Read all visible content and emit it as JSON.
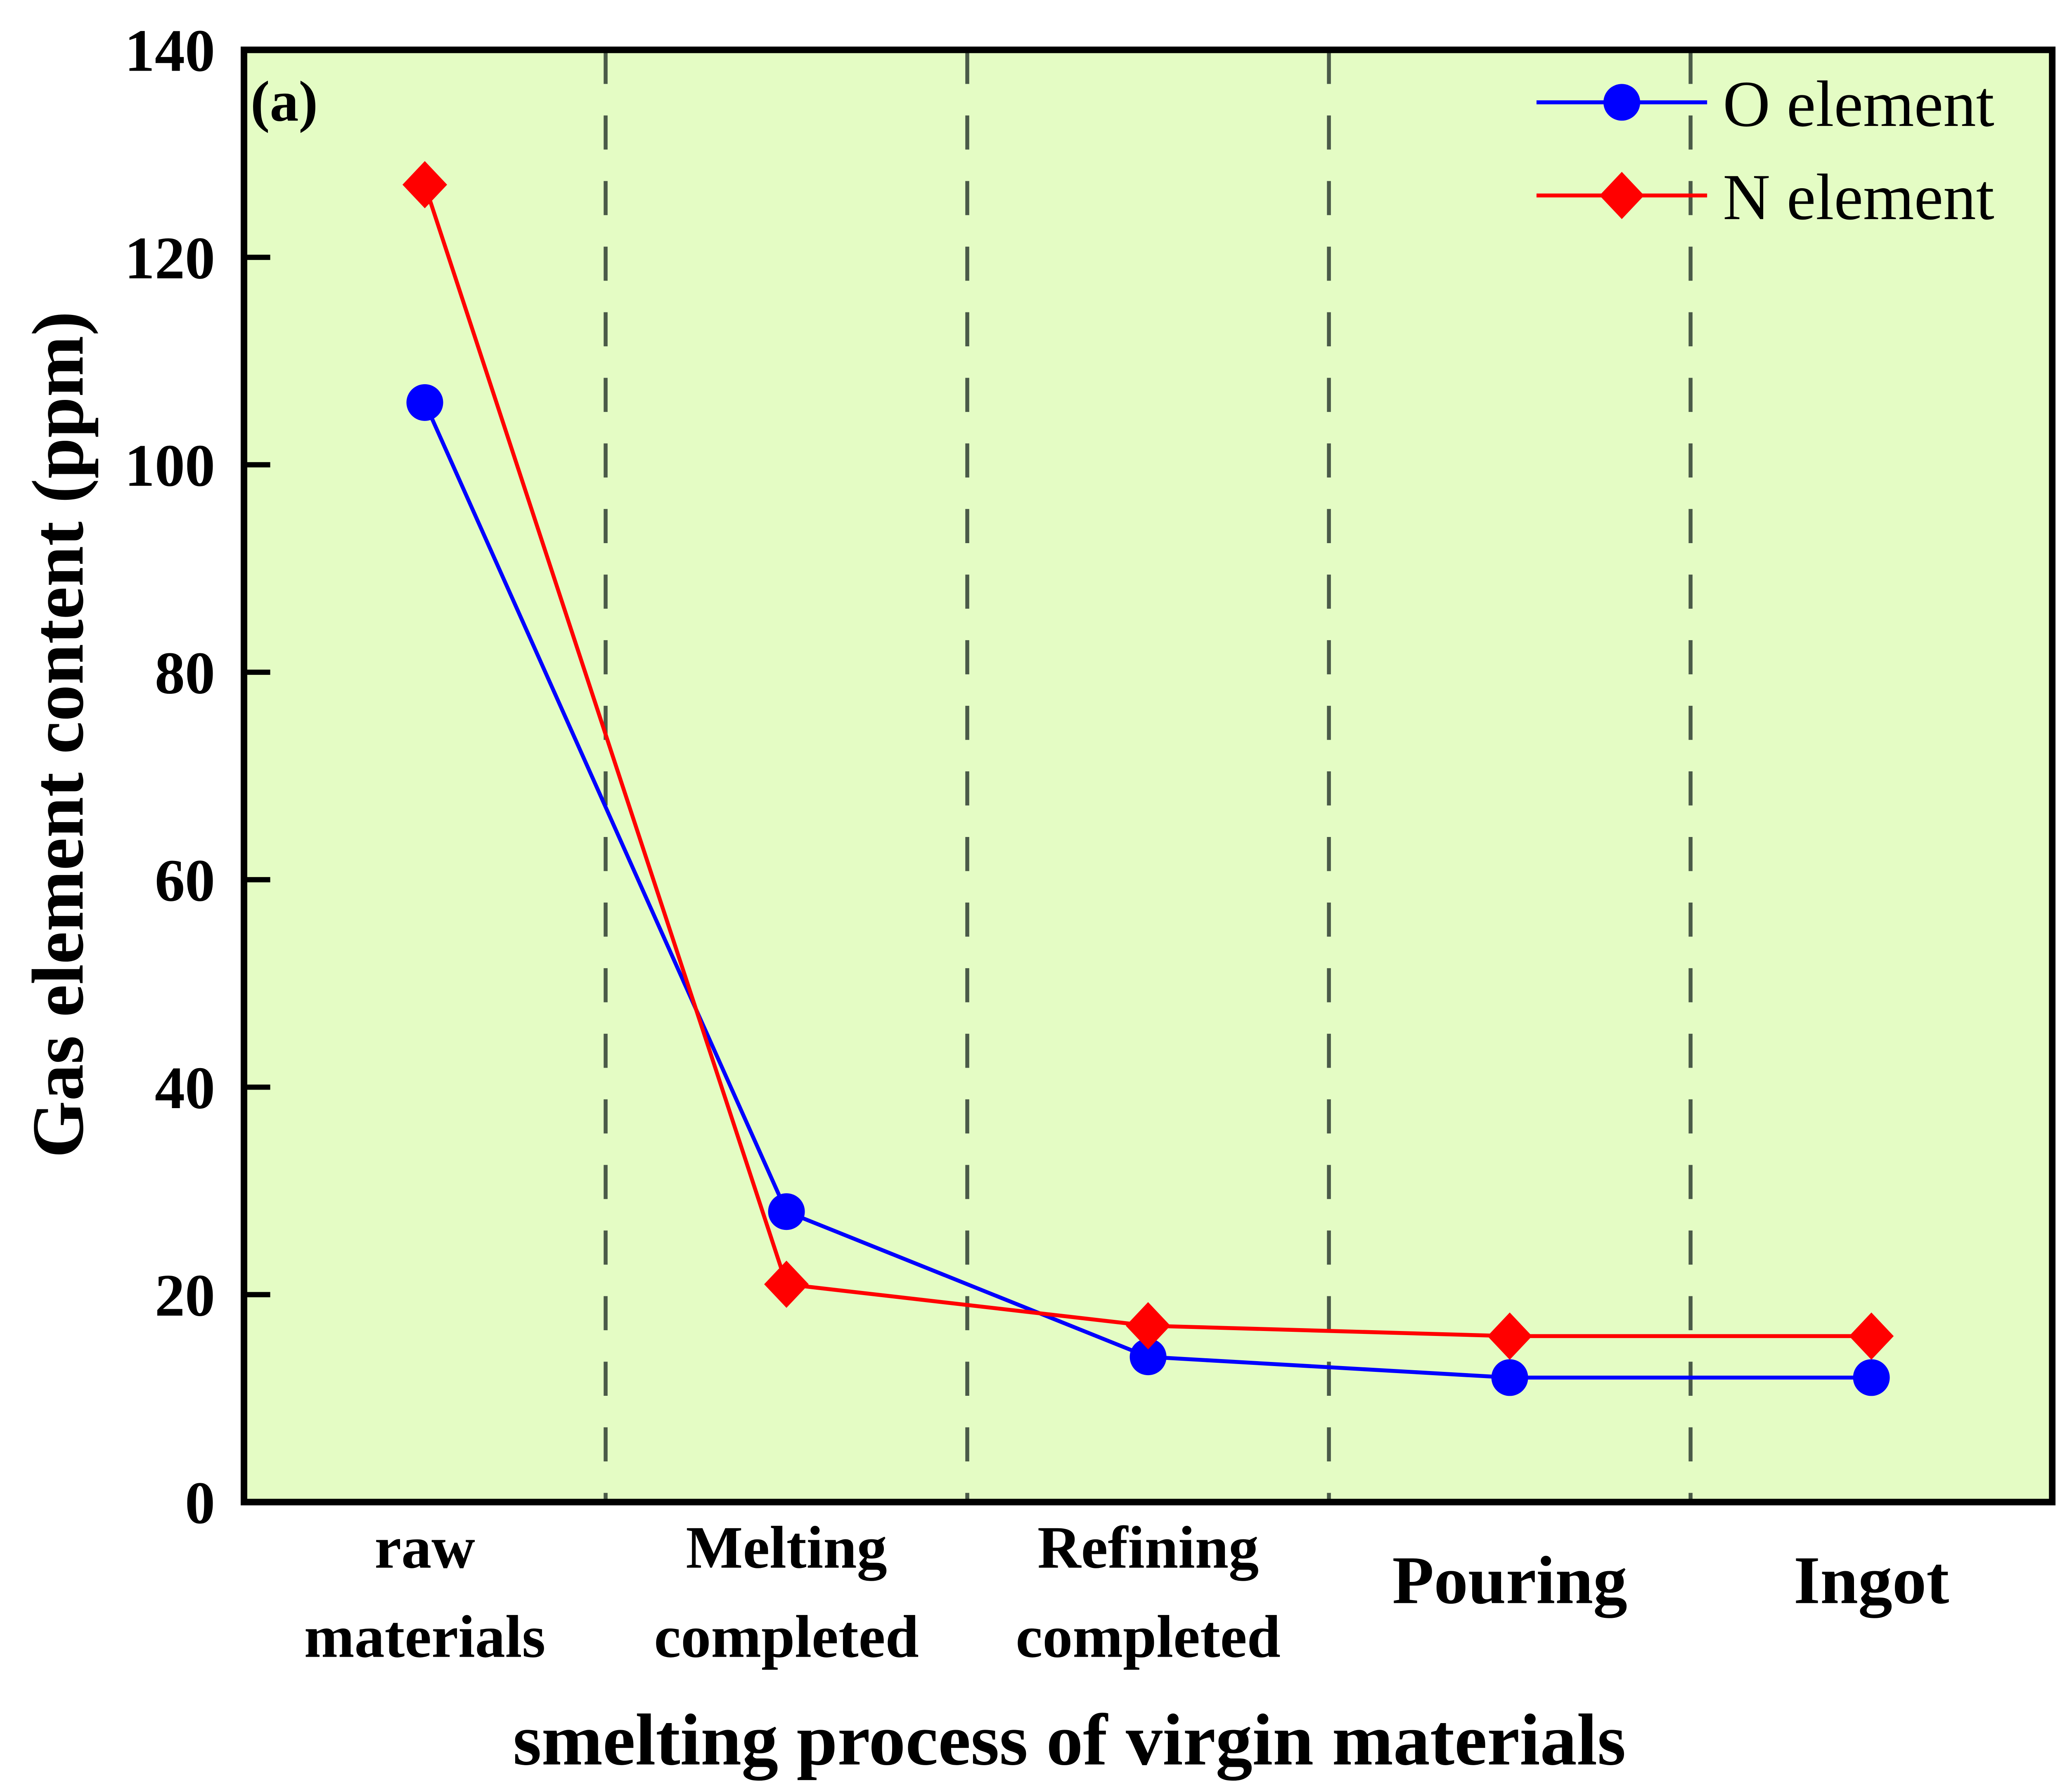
{
  "chart_data": {
    "type": "line",
    "panel_label": "(a)",
    "xlabel": "smelting process of virgin materials",
    "ylabel": "Gas element content (ppm)",
    "categories": [
      [
        "raw",
        "materials"
      ],
      [
        "Melting",
        "completed"
      ],
      [
        "Refining",
        "completed"
      ],
      [
        "Pouring"
      ],
      [
        "Ingot"
      ]
    ],
    "ylim": [
      0,
      140
    ],
    "yticks": [
      0,
      20,
      40,
      60,
      80,
      100,
      120,
      140
    ],
    "grid": false,
    "category_separators": "dashed vertical lines between categories",
    "background_color": "#e4fcc4",
    "legend_position": "top-right",
    "series": [
      {
        "name": "O element",
        "marker": "circle",
        "color": "#0000ff",
        "values": [
          106,
          28,
          14,
          12,
          12
        ]
      },
      {
        "name": "N element",
        "marker": "diamond",
        "color": "#ff0000",
        "values": [
          127,
          21,
          17,
          16,
          16
        ]
      }
    ]
  }
}
